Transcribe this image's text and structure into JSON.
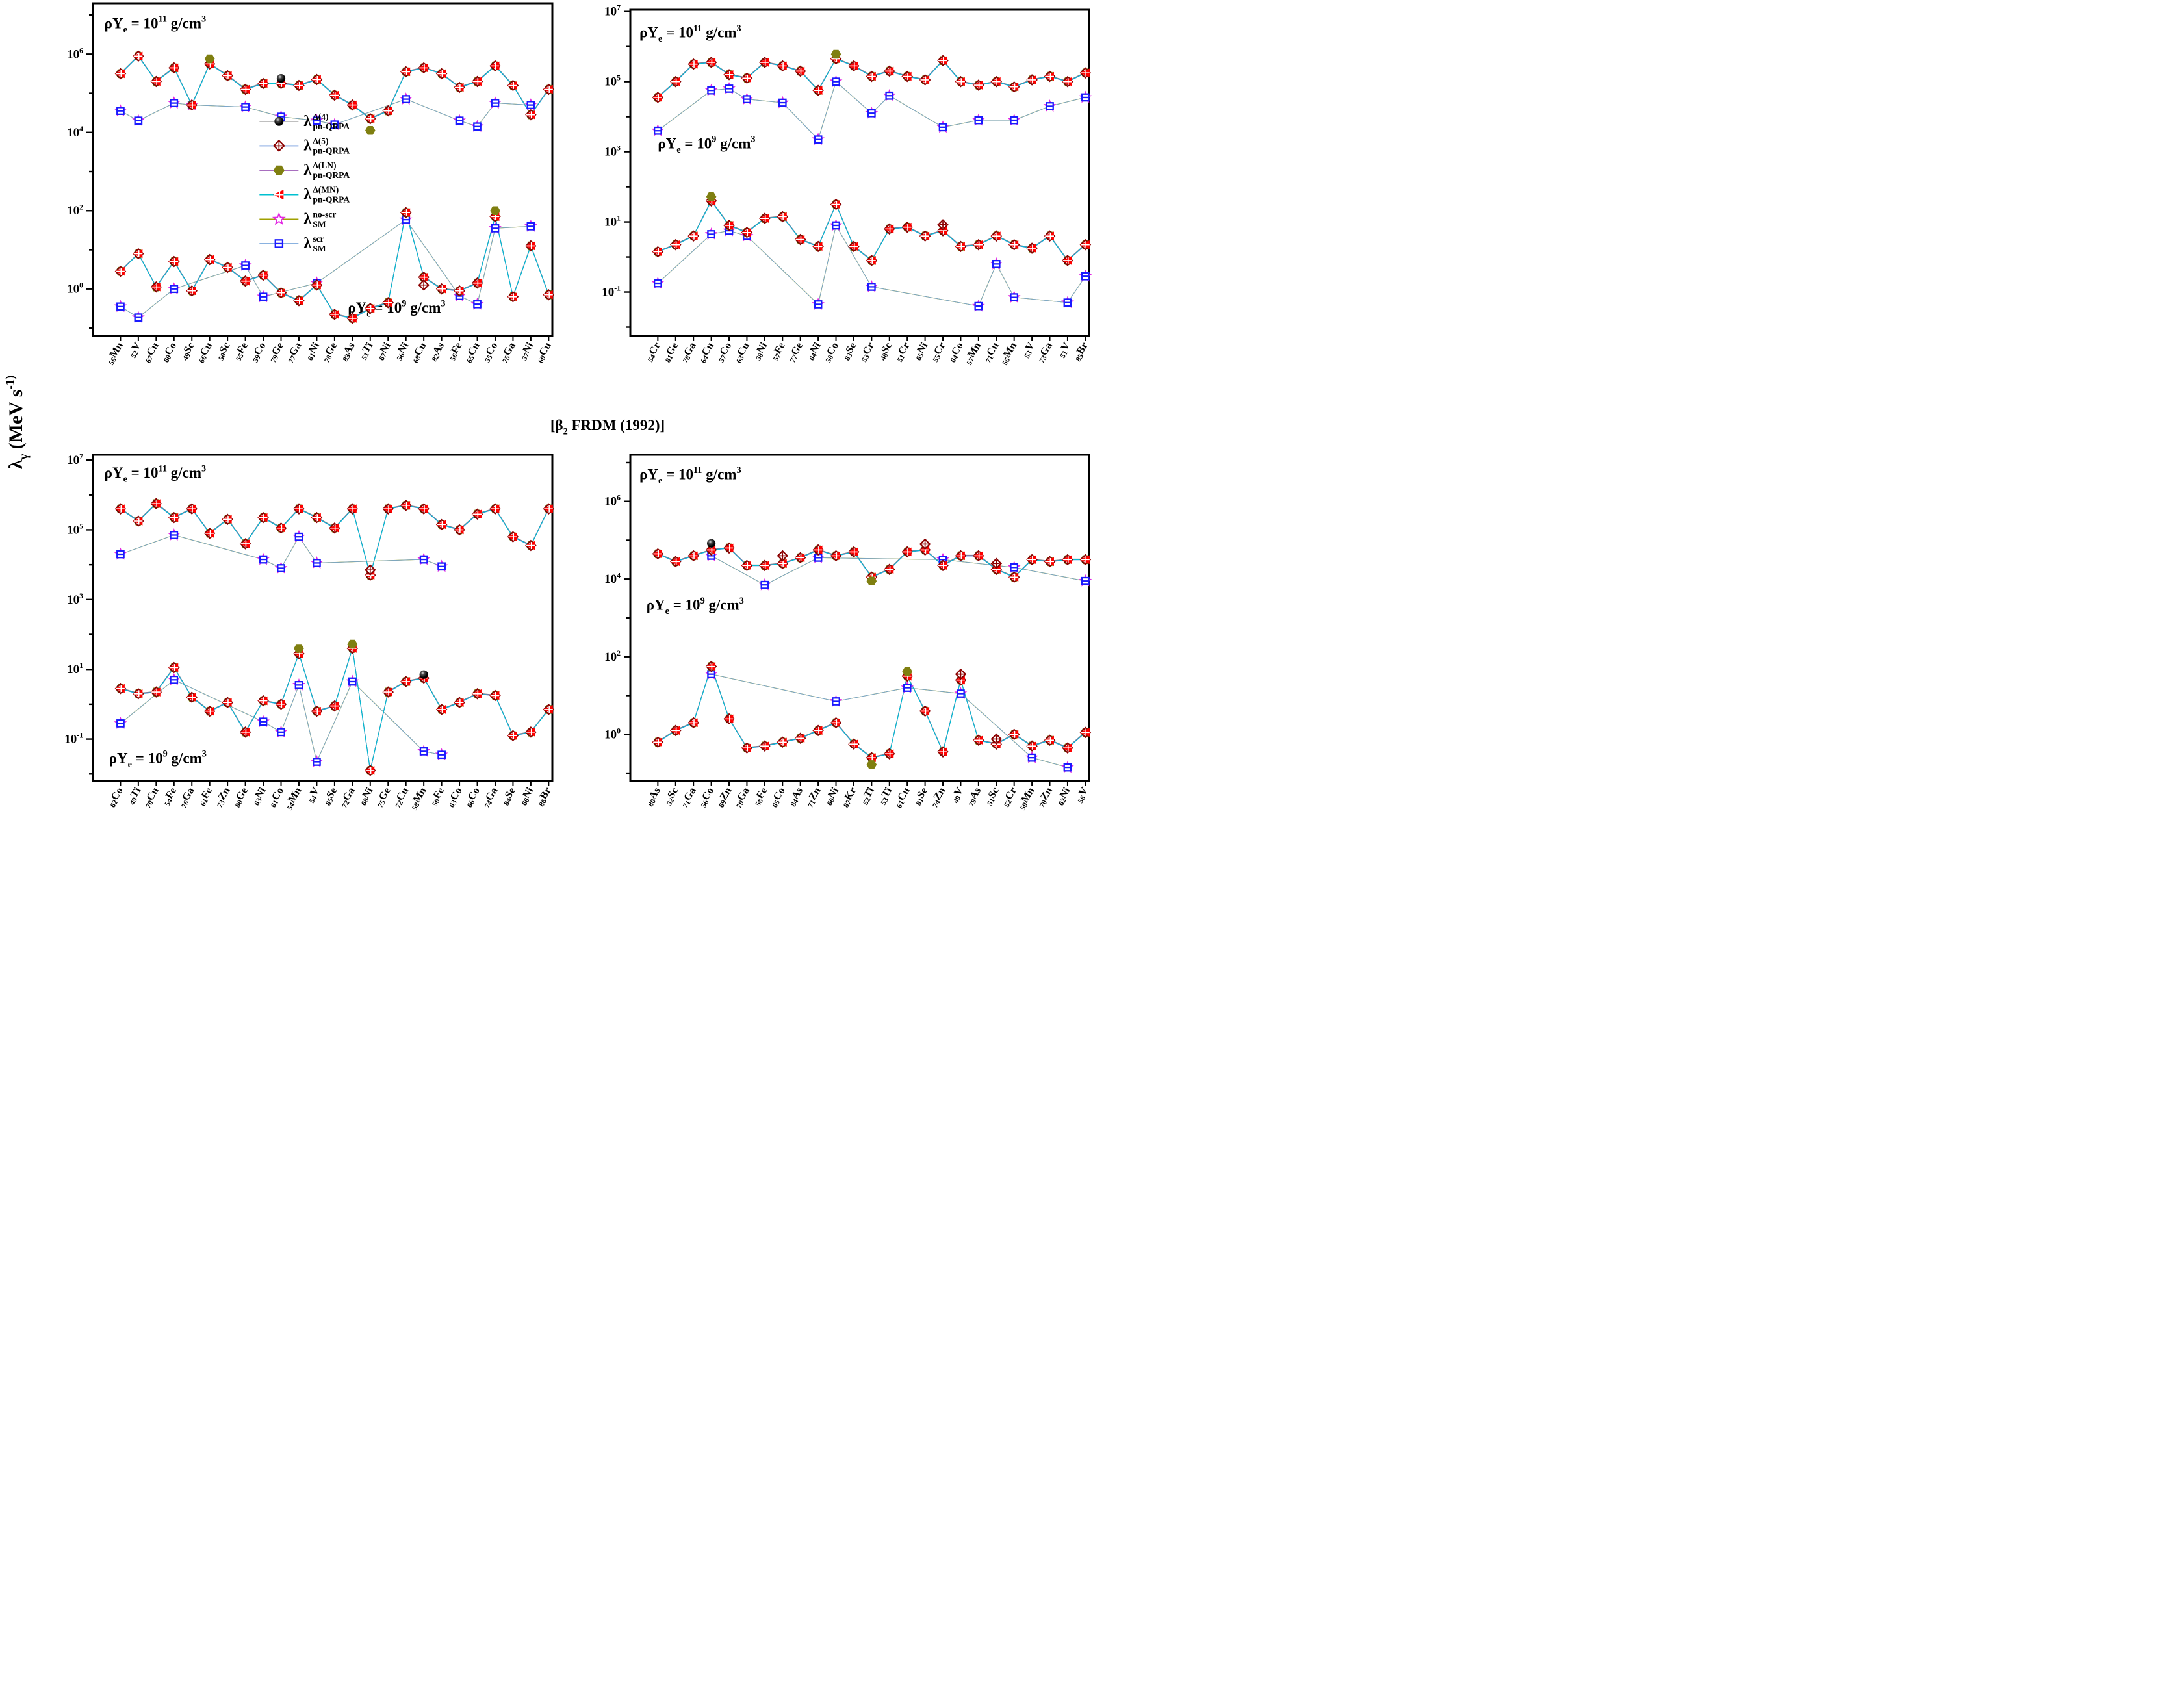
{
  "figure": {
    "y_axis_label": "λ_γ (MeV s^-1)",
    "center_title": "[β_2 FRDM (1992)]",
    "value_scale": "log10",
    "units": "MeV s^-1"
  },
  "legend": [
    {
      "id": "qrpa-d4",
      "marker": "filled-circle-black",
      "line_color": "#7f7f7f",
      "label": {
        "base": "λ",
        "sup": "Δ(4)",
        "sub": "pn-QRPA"
      }
    },
    {
      "id": "qrpa-d5",
      "marker": "open-diamond-crossed-darkred",
      "line_color": "#4a7fd4",
      "label": {
        "base": "λ",
        "sup": "Δ(5)",
        "sub": "pn-QRPA"
      }
    },
    {
      "id": "qrpa-ln",
      "marker": "filled-hexagon-olive",
      "line_color": "#9b59b6",
      "label": {
        "base": "λ",
        "sup": "Δ(LN)",
        "sub": "pn-QRPA"
      }
    },
    {
      "id": "qrpa-mn",
      "marker": "left-triangle-crossed-red",
      "line_color": "#00c0d0",
      "label": {
        "base": "λ",
        "sup": "Δ(MN)",
        "sub": "pn-QRPA"
      }
    },
    {
      "id": "sm-noscr",
      "marker": "open-star-magenta",
      "line_color": "#a0a000",
      "label": {
        "base": "λ",
        "sup": "no-scr",
        "sub": "SM"
      }
    },
    {
      "id": "sm-scr",
      "marker": "open-square-barred-blue",
      "line_color": "#79a7dc",
      "label": {
        "base": "λ",
        "sup": "scr",
        "sub": "SM"
      }
    }
  ],
  "colors": {
    "triangle": "#ff0000",
    "hexagon": "#7f7f10",
    "diamond": "#8b0000",
    "circle": "#000000",
    "square": "#1a1aff",
    "star": "#e329e3",
    "line_gray": "#7f7f7f",
    "line_blue": "#4a7fd4",
    "line_violet": "#9b59b6",
    "line_cyan": "#00c0d0",
    "line_darkyellow": "#a0a000",
    "line_lightblue": "#79a7dc"
  },
  "chart_data": [
    {
      "type": "line",
      "position": "top-left",
      "density_labels": {
        "high": "ρY_e = 10^11 g/cm^3",
        "low": "ρY_e = 10^9 g/cm^3"
      },
      "x_categories": [
        "56Mn",
        "52V",
        "67Cu",
        "60Co",
        "49Sc",
        "66Cu",
        "50Sc",
        "55Fe",
        "59Co",
        "79Ge",
        "77Ga",
        "61Ni",
        "78Ge",
        "83As",
        "51Ti",
        "67Ni",
        "56Ni",
        "68Cu",
        "82As",
        "56Fe",
        "65Cu",
        "55Co",
        "75Ga",
        "57Ni",
        "69Cu"
      ],
      "y_tick_exponents": [
        6,
        4,
        2,
        0
      ],
      "ylim_log10": [
        -1.2,
        7.3
      ],
      "clusters": {
        "rhoYe_1e11": {
          "pn_qrpa_log10": [
            5.5,
            5.95,
            5.3,
            5.65,
            4.7,
            5.75,
            5.45,
            5.1,
            5.25,
            5.25,
            5.2,
            5.35,
            4.95,
            4.7,
            4.35,
            4.55,
            5.55,
            5.65,
            5.5,
            5.15,
            5.3,
            5.7,
            5.2,
            4.45,
            5.1
          ],
          "sm_log10": [
            4.55,
            4.3,
            null,
            4.75,
            4.7,
            null,
            null,
            4.65,
            null,
            4.4,
            null,
            4.3,
            4.2,
            null,
            null,
            null,
            4.85,
            null,
            null,
            4.3,
            4.15,
            4.75,
            null,
            4.7,
            null
          ]
        },
        "rhoYe_1e9": {
          "pn_qrpa_log10": [
            0.45,
            0.9,
            0.05,
            0.7,
            -0.05,
            0.75,
            0.55,
            0.2,
            0.35,
            -0.1,
            -0.3,
            0.1,
            -0.65,
            -0.75,
            -0.5,
            -0.35,
            1.95,
            0.3,
            0.0,
            -0.05,
            0.15,
            1.85,
            -0.2,
            1.1,
            -0.15
          ],
          "sm_log10": [
            -0.45,
            -0.73,
            null,
            0.0,
            null,
            null,
            null,
            0.6,
            -0.2,
            null,
            null,
            0.15,
            null,
            null,
            null,
            null,
            1.77,
            null,
            null,
            -0.18,
            -0.39,
            1.55,
            null,
            1.6,
            null
          ]
        }
      },
      "outliers": {
        "rhoYe_1e11": [
          {
            "index": 15,
            "series": "LN",
            "log10": 4.05
          },
          {
            "index": 6,
            "series": "LN",
            "log10": 5.88
          },
          {
            "index": 10,
            "series": "D4",
            "log10": 5.38
          }
        ],
        "rhoYe_1e9": [
          {
            "index": 22,
            "series": "LN",
            "log10": 2.0
          },
          {
            "index": 18,
            "series": "D5",
            "log10": 0.1
          }
        ]
      }
    },
    {
      "type": "line",
      "position": "top-right",
      "density_labels": {
        "high": "ρY_e = 10^11 g/cm^3",
        "low": "ρY_e = 10^9 g/cm^3"
      },
      "x_categories": [
        "54Cr",
        "81Ge",
        "78Ga",
        "64Cu",
        "57Co",
        "63Cu",
        "58Ni",
        "57Fe",
        "77Ge",
        "64Ni",
        "58Co",
        "83Se",
        "53Cr",
        "48Sc",
        "51Cr",
        "65Ni",
        "55Cr",
        "64Co",
        "57Mn",
        "71Cu",
        "55Mn",
        "53V",
        "73Ga",
        "51V",
        "85Br"
      ],
      "y_tick_exponents": [
        7,
        5,
        3,
        1,
        -1
      ],
      "ylim_log10": [
        -2.25,
        7.05
      ],
      "clusters": {
        "rhoYe_1e11": {
          "pn_qrpa_log10": [
            4.55,
            5.0,
            5.5,
            5.55,
            5.2,
            5.1,
            5.55,
            5.45,
            5.3,
            4.75,
            5.65,
            5.45,
            5.15,
            5.3,
            5.15,
            5.05,
            5.6,
            5.0,
            4.9,
            5.0,
            4.85,
            5.05,
            5.15,
            5.0,
            5.25
          ],
          "sm_log10": [
            3.6,
            null,
            null,
            4.75,
            4.8,
            4.5,
            null,
            4.4,
            null,
            3.35,
            5.0,
            null,
            4.1,
            4.6,
            null,
            null,
            3.7,
            null,
            3.9,
            null,
            3.9,
            null,
            4.3,
            null,
            4.55
          ]
        },
        "rhoYe_1e9": {
          "pn_qrpa_log10": [
            0.15,
            0.35,
            0.6,
            1.6,
            0.9,
            0.7,
            1.1,
            1.15,
            0.5,
            0.3,
            1.5,
            0.3,
            -0.1,
            0.8,
            0.85,
            0.6,
            0.75,
            0.3,
            0.35,
            0.6,
            0.35,
            0.25,
            0.6,
            -0.1,
            0.35
          ],
          "sm_log10": [
            -0.75,
            null,
            null,
            0.65,
            0.75,
            0.6,
            null,
            null,
            null,
            -1.35,
            0.9,
            null,
            -0.85,
            null,
            null,
            null,
            null,
            null,
            -1.4,
            -0.2,
            -1.15,
            null,
            null,
            -1.3,
            -0.55
          ]
        }
      },
      "outliers": {
        "rhoYe_1e11": [
          {
            "index": 11,
            "series": "LN",
            "log10": 5.78
          }
        ],
        "rhoYe_1e9": [
          {
            "index": 4,
            "series": "LN",
            "log10": 1.72
          },
          {
            "index": 17,
            "series": "D5",
            "log10": 0.92
          }
        ]
      }
    },
    {
      "type": "line",
      "position": "bottom-left",
      "density_labels": {
        "high": "ρY_e = 10^11 g/cm^3",
        "low": "ρY_e = 10^9 g/cm^3"
      },
      "x_categories": [
        "62Co",
        "49Ti",
        "70Cu",
        "54Fe",
        "76Ga",
        "61Fe",
        "73Zn",
        "80Ge",
        "63Ni",
        "61Co",
        "54Mn",
        "54V",
        "85Se",
        "72Ga",
        "68Ni",
        "75Ge",
        "72Cu",
        "58Mn",
        "59Fe",
        "63Co",
        "66Co",
        "74Ga",
        "84Se",
        "66Ni",
        "86Br"
      ],
      "y_tick_exponents": [
        7,
        5,
        3,
        1,
        -1
      ],
      "ylim_log10": [
        -2.2,
        7.15
      ],
      "clusters": {
        "rhoYe_1e11": {
          "pn_qrpa_log10": [
            5.6,
            5.25,
            5.75,
            5.35,
            5.6,
            4.9,
            5.3,
            4.6,
            5.35,
            5.05,
            5.6,
            5.35,
            5.05,
            5.6,
            3.7,
            5.6,
            5.7,
            5.6,
            5.15,
            5.0,
            5.45,
            5.6,
            4.8,
            4.55,
            5.6
          ],
          "sm_log10": [
            4.3,
            null,
            null,
            4.85,
            null,
            null,
            null,
            null,
            4.15,
            3.9,
            4.8,
            4.05,
            null,
            null,
            null,
            null,
            null,
            4.15,
            3.95,
            null,
            null,
            null,
            null,
            null,
            null
          ]
        },
        "rhoYe_1e9": {
          "pn_qrpa_log10": [
            0.45,
            0.3,
            0.35,
            1.05,
            0.2,
            -0.2,
            0.05,
            -0.8,
            0.1,
            0.0,
            1.45,
            -0.2,
            -0.05,
            1.6,
            -1.9,
            0.35,
            0.65,
            0.75,
            -0.15,
            0.05,
            0.3,
            0.25,
            -0.9,
            -0.8,
            -0.15
          ],
          "sm_log10": [
            -0.55,
            null,
            null,
            0.7,
            null,
            null,
            null,
            null,
            -0.5,
            -0.8,
            0.55,
            -1.65,
            null,
            0.65,
            null,
            null,
            null,
            -1.35,
            -1.45,
            null,
            null,
            null,
            null,
            null,
            null
          ]
        }
      },
      "outliers": {
        "rhoYe_1e11": [
          {
            "index": 15,
            "series": "D5",
            "log10": 3.85
          }
        ],
        "rhoYe_1e9": [
          {
            "index": 11,
            "series": "LN",
            "log10": 1.6
          },
          {
            "index": 14,
            "series": "LN",
            "log10": 1.72
          },
          {
            "index": 18,
            "series": "D4",
            "log10": 0.85
          }
        ]
      }
    },
    {
      "type": "line",
      "position": "bottom-right",
      "density_labels": {
        "high": "ρY_e = 10^11 g/cm^3",
        "low": "ρY_e = 10^9 g/cm^3"
      },
      "x_categories": [
        "80As",
        "52Sc",
        "71Ga",
        "56Co",
        "69Zn",
        "79Ga",
        "58Fe",
        "65Co",
        "84As",
        "71Zn",
        "60Ni",
        "87Kr",
        "52Ti",
        "53Ti",
        "61Cu",
        "81Se",
        "74Zn",
        "49V",
        "79As",
        "51Sc",
        "52Cr",
        "59Mn",
        "70Zn",
        "62Ni",
        "56V"
      ],
      "y_tick_exponents": [
        6,
        4,
        2,
        0
      ],
      "ylim_log10": [
        -1.2,
        7.2
      ],
      "clusters": {
        "rhoYe_1e11": {
          "pn_qrpa_log10": [
            4.65,
            4.45,
            4.6,
            4.75,
            4.8,
            4.35,
            4.35,
            4.4,
            4.55,
            4.75,
            4.6,
            4.7,
            4.05,
            4.25,
            4.7,
            4.75,
            4.35,
            4.6,
            4.6,
            4.25,
            4.05,
            4.5,
            4.45,
            4.5,
            4.5
          ],
          "sm_log10": [
            null,
            null,
            null,
            4.6,
            null,
            null,
            3.85,
            null,
            null,
            4.55,
            null,
            null,
            null,
            null,
            null,
            null,
            4.5,
            null,
            null,
            null,
            4.3,
            null,
            null,
            null,
            3.95
          ]
        },
        "rhoYe_1e9": {
          "pn_qrpa_log10": [
            -0.2,
            0.1,
            0.3,
            1.75,
            0.4,
            -0.35,
            -0.3,
            -0.2,
            -0.1,
            0.1,
            0.3,
            -0.25,
            -0.6,
            -0.5,
            1.5,
            0.6,
            -0.45,
            1.4,
            -0.15,
            -0.25,
            0.0,
            -0.3,
            -0.15,
            -0.35,
            0.05
          ],
          "sm_log10": [
            null,
            null,
            null,
            1.55,
            null,
            null,
            null,
            null,
            null,
            null,
            0.85,
            null,
            null,
            null,
            1.2,
            null,
            null,
            1.05,
            null,
            null,
            null,
            -0.6,
            null,
            -0.85,
            null
          ]
        }
      },
      "outliers": {
        "rhoYe_1e11": [
          {
            "index": 4,
            "series": "D4",
            "log10": 4.92
          },
          {
            "index": 8,
            "series": "D5",
            "log10": 4.6
          },
          {
            "index": 16,
            "series": "D5",
            "log10": 4.9
          },
          {
            "index": 20,
            "series": "D5",
            "log10": 4.4
          },
          {
            "index": 13,
            "series": "LN",
            "log10": 3.95
          }
        ],
        "rhoYe_1e9": [
          {
            "index": 18,
            "series": "D5",
            "log10": 1.55
          },
          {
            "index": 13,
            "series": "LN",
            "log10": -0.78
          },
          {
            "index": 15,
            "series": "LN",
            "log10": 1.62
          },
          {
            "index": 20,
            "series": "D5",
            "log10": -0.12
          }
        ]
      }
    }
  ]
}
